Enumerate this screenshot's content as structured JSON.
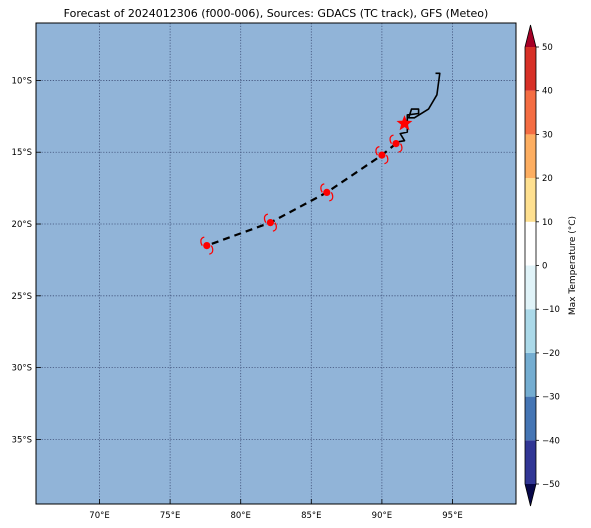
{
  "title": "Forecast of 2024012306 (f000-006), Sources: GDACS (TC track), GFS (Meteo)",
  "map": {
    "lon_range": [
      65.5,
      99.5
    ],
    "lat_range": [
      -39.5,
      -6.0
    ],
    "ocean_color": "#91b4d8",
    "grid_style": "dotted",
    "lon_ticks": [
      {
        "value": 70,
        "label": "70°E"
      },
      {
        "value": 75,
        "label": "75°E"
      },
      {
        "value": 80,
        "label": "80°E"
      },
      {
        "value": 85,
        "label": "85°E"
      },
      {
        "value": 90,
        "label": "90°E"
      },
      {
        "value": 95,
        "label": "95°E"
      }
    ],
    "lat_ticks": [
      {
        "value": -10,
        "label": "10°S"
      },
      {
        "value": -15,
        "label": "15°S"
      },
      {
        "value": -20,
        "label": "20°S"
      },
      {
        "value": -25,
        "label": "25°S"
      },
      {
        "value": -30,
        "label": "30°S"
      },
      {
        "value": -35,
        "label": "35°S"
      }
    ]
  },
  "observed_track": {
    "color": "#000000",
    "points": [
      [
        93.8,
        -9.5
      ],
      [
        94.1,
        -9.5
      ],
      [
        93.9,
        -11.0
      ],
      [
        93.3,
        -12.0
      ],
      [
        92.3,
        -12.6
      ],
      [
        91.9,
        -12.6
      ],
      [
        92.1,
        -12.0
      ],
      [
        92.6,
        -12.0
      ],
      [
        92.6,
        -12.3
      ],
      [
        91.8,
        -12.4
      ],
      [
        91.8,
        -13.6
      ],
      [
        91.3,
        -13.7
      ],
      [
        91.6,
        -14.2
      ],
      [
        91.0,
        -14.3
      ]
    ]
  },
  "forecast_track": {
    "color": "#000000",
    "style": "dashed",
    "points": [
      [
        91.0,
        -14.4
      ],
      [
        90.0,
        -15.2
      ],
      [
        86.1,
        -17.8
      ],
      [
        82.1,
        -19.9
      ],
      [
        77.6,
        -21.5
      ]
    ]
  },
  "storm_positions": [
    {
      "lon": 91.0,
      "lat": -14.4
    },
    {
      "lon": 90.0,
      "lat": -15.2
    },
    {
      "lon": 86.1,
      "lat": -17.8
    },
    {
      "lon": 82.1,
      "lat": -19.9
    },
    {
      "lon": 77.6,
      "lat": -21.5
    }
  ],
  "current_position": {
    "lon": 91.6,
    "lat": -13.0,
    "color": "#ff0000"
  },
  "colorbar": {
    "label": "Max Temperature (°C)",
    "range": [
      -50,
      50
    ],
    "extend": "both",
    "levels": [
      {
        "from": -50,
        "to": -40,
        "color": "#313695"
      },
      {
        "from": -40,
        "to": -30,
        "color": "#4575b4"
      },
      {
        "from": -30,
        "to": -20,
        "color": "#74add1"
      },
      {
        "from": -20,
        "to": -10,
        "color": "#abd9e9"
      },
      {
        "from": -10,
        "to": 0,
        "color": "#e0f3f8"
      },
      {
        "from": 0,
        "to": 10,
        "color": "#ffffff"
      },
      {
        "from": 10,
        "to": 20,
        "color": "#fee090"
      },
      {
        "from": 20,
        "to": 30,
        "color": "#fdae61"
      },
      {
        "from": 30,
        "to": 40,
        "color": "#f46d43"
      },
      {
        "from": 40,
        "to": 50,
        "color": "#d73027"
      }
    ],
    "under_color": "#08084a",
    "over_color": "#a50026",
    "ticks": [
      {
        "value": 50,
        "label": "50"
      },
      {
        "value": 40,
        "label": "40"
      },
      {
        "value": 30,
        "label": "30"
      },
      {
        "value": 20,
        "label": "20"
      },
      {
        "value": 10,
        "label": "10"
      },
      {
        "value": 0,
        "label": "0"
      },
      {
        "value": -10,
        "label": "−10"
      },
      {
        "value": -20,
        "label": "−20"
      },
      {
        "value": -30,
        "label": "−30"
      },
      {
        "value": -40,
        "label": "−40"
      },
      {
        "value": -50,
        "label": "−50"
      }
    ]
  }
}
